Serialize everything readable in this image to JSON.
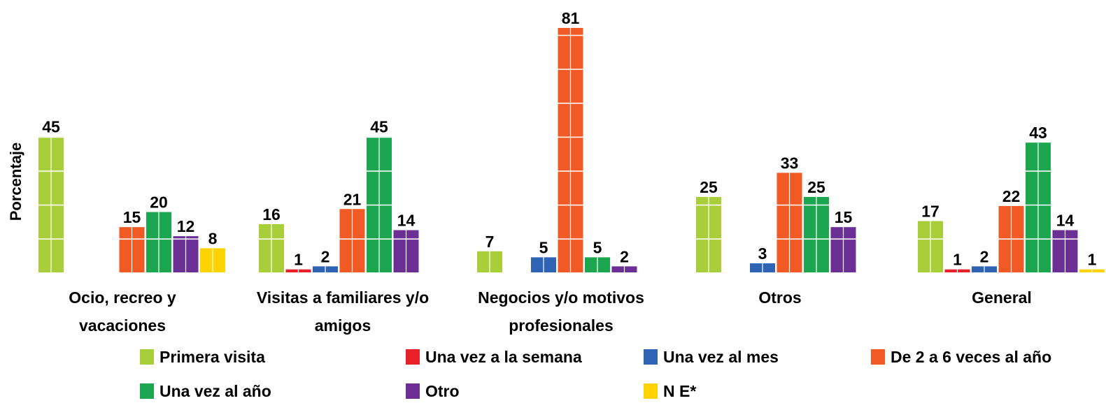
{
  "chart_data": {
    "type": "bar",
    "y_label": "Porcentaje",
    "categories": [
      "Ocio, recreo y\nvacaciones",
      "Visitas a familiares y/o\namigos",
      "Negocios y/o motivos\nprofesionales",
      "Otros",
      "General"
    ],
    "series": [
      {
        "name": "Primera visita",
        "color": "#a8cf3a",
        "values": [
          45,
          16,
          7,
          25,
          17
        ]
      },
      {
        "name": "Una vez a la semana",
        "color": "#e8202a",
        "values": [
          null,
          1,
          null,
          null,
          1
        ]
      },
      {
        "name": "Una vez al mes",
        "color": "#2f63b4",
        "values": [
          null,
          2,
          5,
          3,
          2
        ]
      },
      {
        "name": "De 2 a 6 veces al año",
        "color": "#f15a24",
        "values": [
          15,
          21,
          81,
          33,
          22
        ]
      },
      {
        "name": "Una vez al año",
        "color": "#1ca64f",
        "values": [
          20,
          45,
          5,
          25,
          43
        ]
      },
      {
        "name": "Otro",
        "color": "#6b2f96",
        "values": [
          12,
          14,
          2,
          15,
          14
        ]
      },
      {
        "name": "N E*",
        "color": "#ffd200",
        "values": [
          8,
          null,
          null,
          null,
          1
        ]
      }
    ],
    "ylim": [
      0,
      81
    ]
  }
}
